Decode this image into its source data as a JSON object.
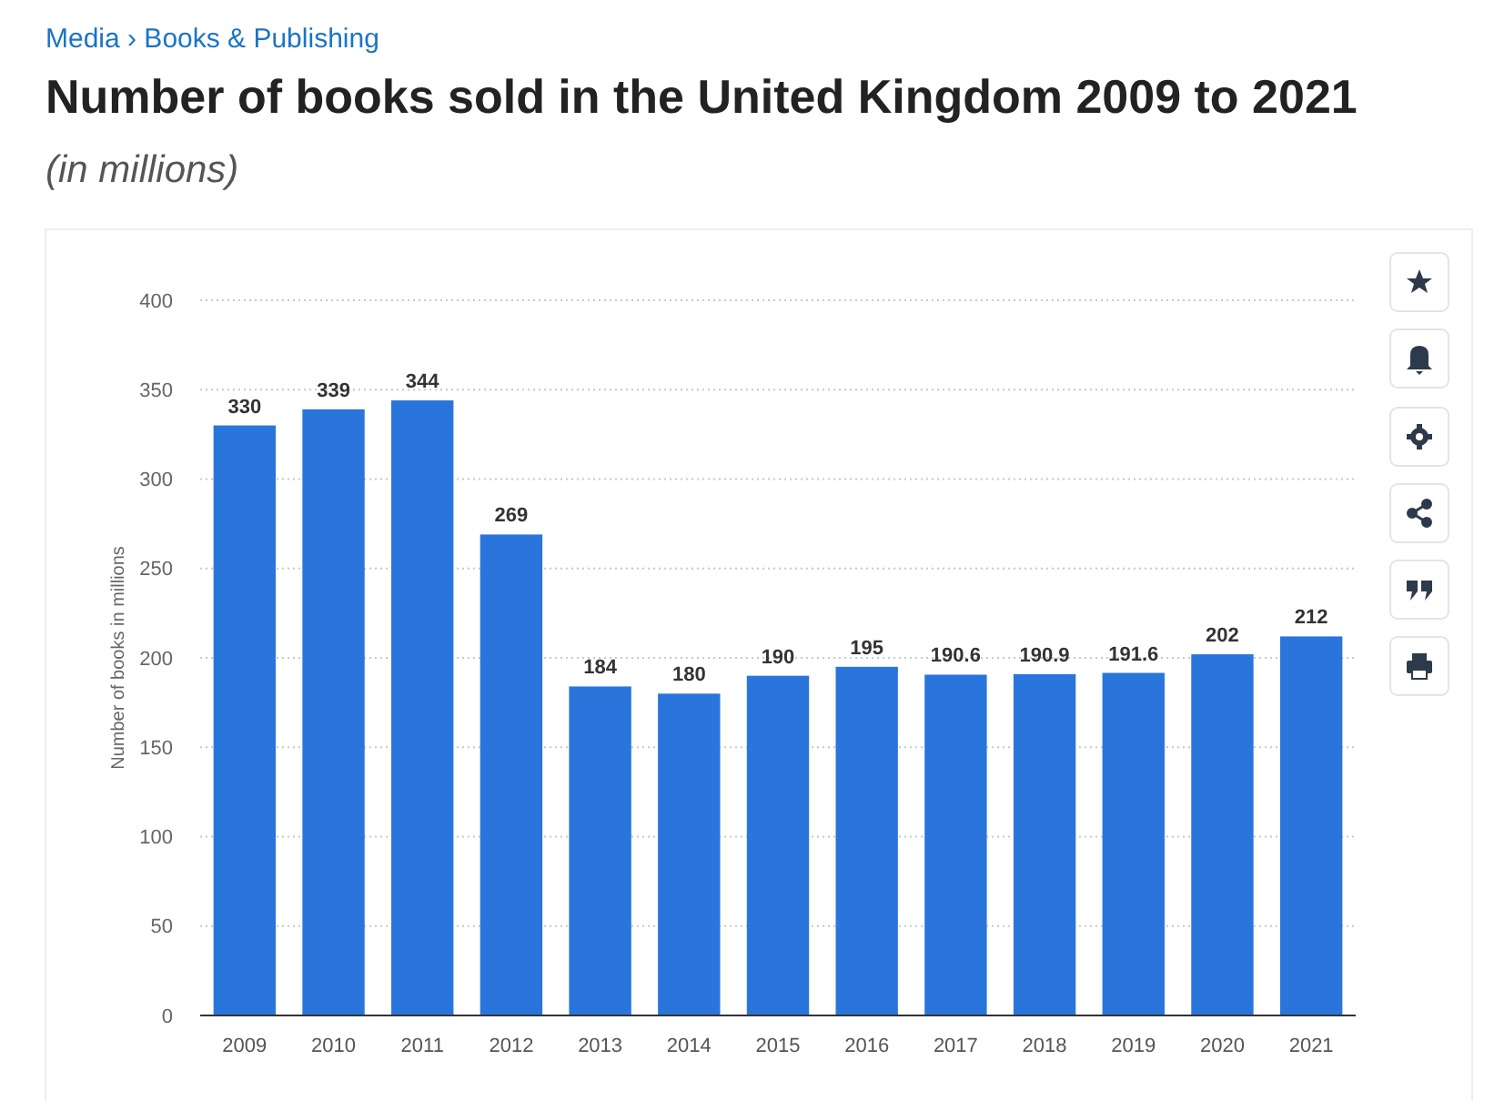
{
  "chart_data": {
    "type": "bar",
    "title": "Number of books sold in the United Kingdom 2009 to 2021",
    "subtitle": "(in millions)",
    "ylabel": "Number of books in millions",
    "annotations": [
      "Media › Books & Publishing"
    ],
    "categories": [
      "2009",
      "2010",
      "2011",
      "2012",
      "2013",
      "2014",
      "2015",
      "2016",
      "2017",
      "2018",
      "2019",
      "2020",
      "2021"
    ],
    "values": [
      330,
      339,
      344,
      269,
      184,
      180,
      190,
      195,
      190.6,
      190.9,
      191.6,
      202,
      212
    ],
    "color": "#2a75dc",
    "ylim": [
      0,
      400
    ],
    "yticks": [
      0,
      50,
      100,
      150,
      200,
      250,
      300,
      350,
      400
    ],
    "grid": "y",
    "data_labels": true
  }
}
